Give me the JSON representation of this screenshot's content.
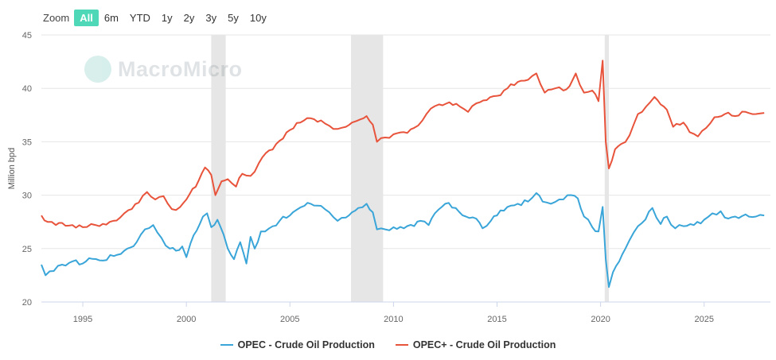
{
  "zoom": {
    "label": "Zoom",
    "options": [
      "All",
      "6m",
      "YTD",
      "1y",
      "2y",
      "3y",
      "5y",
      "10y"
    ],
    "active": "All"
  },
  "watermark": {
    "text": "MacroMicro",
    "logo_icon": "macromicro-logo-icon"
  },
  "colors": {
    "opec": "#3aa5d8",
    "opec_plus": "#e8533b",
    "recession": "#e6e6e6",
    "active_zoom": "#4fd8b7"
  },
  "chart_data": {
    "type": "line",
    "ylabel": "Million bpd",
    "xlabel": "",
    "ylim": [
      20,
      45
    ],
    "yticks": [
      20,
      25,
      30,
      35,
      40,
      45
    ],
    "xlim": [
      1993.0,
      2028.2
    ],
    "xticks": [
      1995,
      2000,
      2005,
      2010,
      2015,
      2020,
      2025
    ],
    "grid": "horizontal",
    "legend_position": "bottom-center",
    "shaded_periods": [
      [
        2001.2,
        2001.9
      ],
      [
        2007.95,
        2009.5
      ],
      [
        2020.2,
        2020.4
      ]
    ],
    "series": [
      {
        "name": "OPEC - Crude Oil Production",
        "color": "#3aa5d8",
        "points": [
          [
            1993.0,
            23.5
          ],
          [
            1993.2,
            22.5
          ],
          [
            1993.6,
            22.9
          ],
          [
            1994.0,
            23.5
          ],
          [
            1994.5,
            23.8
          ],
          [
            1995.0,
            23.6
          ],
          [
            1995.3,
            24.1
          ],
          [
            1995.8,
            23.9
          ],
          [
            1996.5,
            24.3
          ],
          [
            1997.0,
            24.8
          ],
          [
            1997.6,
            25.6
          ],
          [
            1998.0,
            26.8
          ],
          [
            1998.4,
            27.2
          ],
          [
            1998.8,
            26.0
          ],
          [
            1999.2,
            25.0
          ],
          [
            1999.5,
            24.8
          ],
          [
            1999.8,
            25.2
          ],
          [
            2000.0,
            24.2
          ],
          [
            2000.2,
            25.5
          ],
          [
            2000.5,
            26.7
          ],
          [
            2000.8,
            28.0
          ],
          [
            2001.0,
            28.3
          ],
          [
            2001.2,
            27.0
          ],
          [
            2001.5,
            27.7
          ],
          [
            2001.8,
            26.3
          ],
          [
            2002.0,
            25.0
          ],
          [
            2002.3,
            24.0
          ],
          [
            2002.6,
            25.6
          ],
          [
            2002.9,
            23.6
          ],
          [
            2003.1,
            26.1
          ],
          [
            2003.3,
            25.0
          ],
          [
            2003.6,
            26.6
          ],
          [
            2004.0,
            26.9
          ],
          [
            2004.5,
            27.6
          ],
          [
            2005.0,
            28.1
          ],
          [
            2005.3,
            28.6
          ],
          [
            2005.7,
            29.0
          ],
          [
            2006.0,
            29.2
          ],
          [
            2006.5,
            29.0
          ],
          [
            2006.9,
            28.4
          ],
          [
            2007.3,
            27.6
          ],
          [
            2007.7,
            27.9
          ],
          [
            2008.0,
            28.4
          ],
          [
            2008.3,
            28.8
          ],
          [
            2008.7,
            29.2
          ],
          [
            2009.0,
            28.4
          ],
          [
            2009.2,
            26.8
          ],
          [
            2009.6,
            26.8
          ],
          [
            2010.0,
            27.0
          ],
          [
            2010.5,
            26.9
          ],
          [
            2011.0,
            27.1
          ],
          [
            2011.3,
            27.6
          ],
          [
            2011.7,
            27.2
          ],
          [
            2012.0,
            28.3
          ],
          [
            2012.5,
            29.2
          ],
          [
            2013.0,
            28.8
          ],
          [
            2013.5,
            28.0
          ],
          [
            2014.0,
            27.8
          ],
          [
            2014.3,
            26.9
          ],
          [
            2014.7,
            27.6
          ],
          [
            2015.0,
            28.1
          ],
          [
            2015.5,
            28.9
          ],
          [
            2016.0,
            29.2
          ],
          [
            2016.5,
            29.4
          ],
          [
            2016.9,
            30.2
          ],
          [
            2017.2,
            29.4
          ],
          [
            2017.6,
            29.2
          ],
          [
            2018.0,
            29.6
          ],
          [
            2018.4,
            30.0
          ],
          [
            2018.9,
            29.7
          ],
          [
            2019.2,
            28.0
          ],
          [
            2019.6,
            27.0
          ],
          [
            2019.9,
            26.6
          ],
          [
            2020.1,
            28.9
          ],
          [
            2020.25,
            24.0
          ],
          [
            2020.4,
            21.4
          ],
          [
            2020.6,
            22.8
          ],
          [
            2020.9,
            23.8
          ],
          [
            2021.2,
            25.0
          ],
          [
            2021.6,
            26.5
          ],
          [
            2022.0,
            27.4
          ],
          [
            2022.5,
            28.8
          ],
          [
            2022.9,
            27.3
          ],
          [
            2023.2,
            28.0
          ],
          [
            2023.6,
            26.9
          ],
          [
            2024.0,
            27.1
          ],
          [
            2024.5,
            27.2
          ],
          [
            2025.0,
            27.7
          ],
          [
            2025.4,
            28.3
          ],
          [
            2025.8,
            28.5
          ],
          [
            2026.0,
            27.9
          ],
          [
            2026.5,
            28.0
          ],
          [
            2027.0,
            28.2
          ],
          [
            2027.5,
            28.0
          ],
          [
            2027.9,
            28.1
          ]
        ]
      },
      {
        "name": "OPEC+ - Crude Oil Production",
        "color": "#e8533b",
        "points": [
          [
            1993.0,
            28.1
          ],
          [
            1993.3,
            27.5
          ],
          [
            1993.7,
            27.2
          ],
          [
            1994.0,
            27.4
          ],
          [
            1994.5,
            27.2
          ],
          [
            1995.0,
            27.0
          ],
          [
            1995.4,
            27.3
          ],
          [
            1995.8,
            27.1
          ],
          [
            1996.3,
            27.5
          ],
          [
            1996.8,
            27.9
          ],
          [
            1997.2,
            28.6
          ],
          [
            1997.7,
            29.3
          ],
          [
            1998.1,
            30.3
          ],
          [
            1998.5,
            29.6
          ],
          [
            1998.9,
            29.9
          ],
          [
            1999.3,
            28.7
          ],
          [
            1999.7,
            28.9
          ],
          [
            2000.0,
            29.6
          ],
          [
            2000.3,
            30.6
          ],
          [
            2000.6,
            31.4
          ],
          [
            2000.9,
            32.6
          ],
          [
            2001.2,
            31.9
          ],
          [
            2001.4,
            30.0
          ],
          [
            2001.7,
            31.3
          ],
          [
            2002.0,
            31.5
          ],
          [
            2002.4,
            30.8
          ],
          [
            2002.7,
            32.0
          ],
          [
            2003.1,
            31.8
          ],
          [
            2003.5,
            33.0
          ],
          [
            2004.0,
            34.2
          ],
          [
            2004.5,
            35.1
          ],
          [
            2005.0,
            36.1
          ],
          [
            2005.5,
            36.8
          ],
          [
            2006.0,
            37.2
          ],
          [
            2006.5,
            37.0
          ],
          [
            2006.9,
            36.5
          ],
          [
            2007.3,
            36.2
          ],
          [
            2007.7,
            36.4
          ],
          [
            2008.0,
            36.8
          ],
          [
            2008.4,
            37.1
          ],
          [
            2008.7,
            37.4
          ],
          [
            2009.0,
            36.6
          ],
          [
            2009.2,
            35.0
          ],
          [
            2009.6,
            35.4
          ],
          [
            2010.0,
            35.7
          ],
          [
            2010.5,
            35.9
          ],
          [
            2011.0,
            36.3
          ],
          [
            2011.4,
            37.0
          ],
          [
            2011.8,
            38.1
          ],
          [
            2012.2,
            38.5
          ],
          [
            2012.7,
            38.7
          ],
          [
            2013.2,
            38.3
          ],
          [
            2013.6,
            37.8
          ],
          [
            2014.0,
            38.6
          ],
          [
            2014.5,
            38.9
          ],
          [
            2015.0,
            39.3
          ],
          [
            2015.5,
            40.0
          ],
          [
            2016.0,
            40.6
          ],
          [
            2016.5,
            40.8
          ],
          [
            2016.9,
            41.4
          ],
          [
            2017.3,
            39.6
          ],
          [
            2017.8,
            40.0
          ],
          [
            2018.2,
            39.8
          ],
          [
            2018.5,
            40.2
          ],
          [
            2018.8,
            41.4
          ],
          [
            2019.2,
            39.6
          ],
          [
            2019.6,
            39.8
          ],
          [
            2019.9,
            38.8
          ],
          [
            2020.1,
            42.6
          ],
          [
            2020.25,
            35.0
          ],
          [
            2020.4,
            32.5
          ],
          [
            2020.7,
            34.3
          ],
          [
            2021.0,
            34.8
          ],
          [
            2021.4,
            35.6
          ],
          [
            2021.8,
            37.6
          ],
          [
            2022.2,
            38.3
          ],
          [
            2022.6,
            39.2
          ],
          [
            2022.9,
            38.5
          ],
          [
            2023.2,
            38.0
          ],
          [
            2023.5,
            36.4
          ],
          [
            2024.0,
            36.8
          ],
          [
            2024.3,
            35.9
          ],
          [
            2024.7,
            35.5
          ],
          [
            2025.1,
            36.3
          ],
          [
            2025.5,
            37.3
          ],
          [
            2026.0,
            37.6
          ],
          [
            2026.5,
            37.4
          ],
          [
            2027.0,
            37.8
          ],
          [
            2027.5,
            37.6
          ],
          [
            2027.9,
            37.7
          ]
        ]
      }
    ]
  },
  "legend": {
    "items": [
      {
        "label": "OPEC - Crude Oil Production",
        "color": "#3aa5d8"
      },
      {
        "label": "OPEC+ - Crude Oil Production",
        "color": "#e8533b"
      }
    ]
  }
}
